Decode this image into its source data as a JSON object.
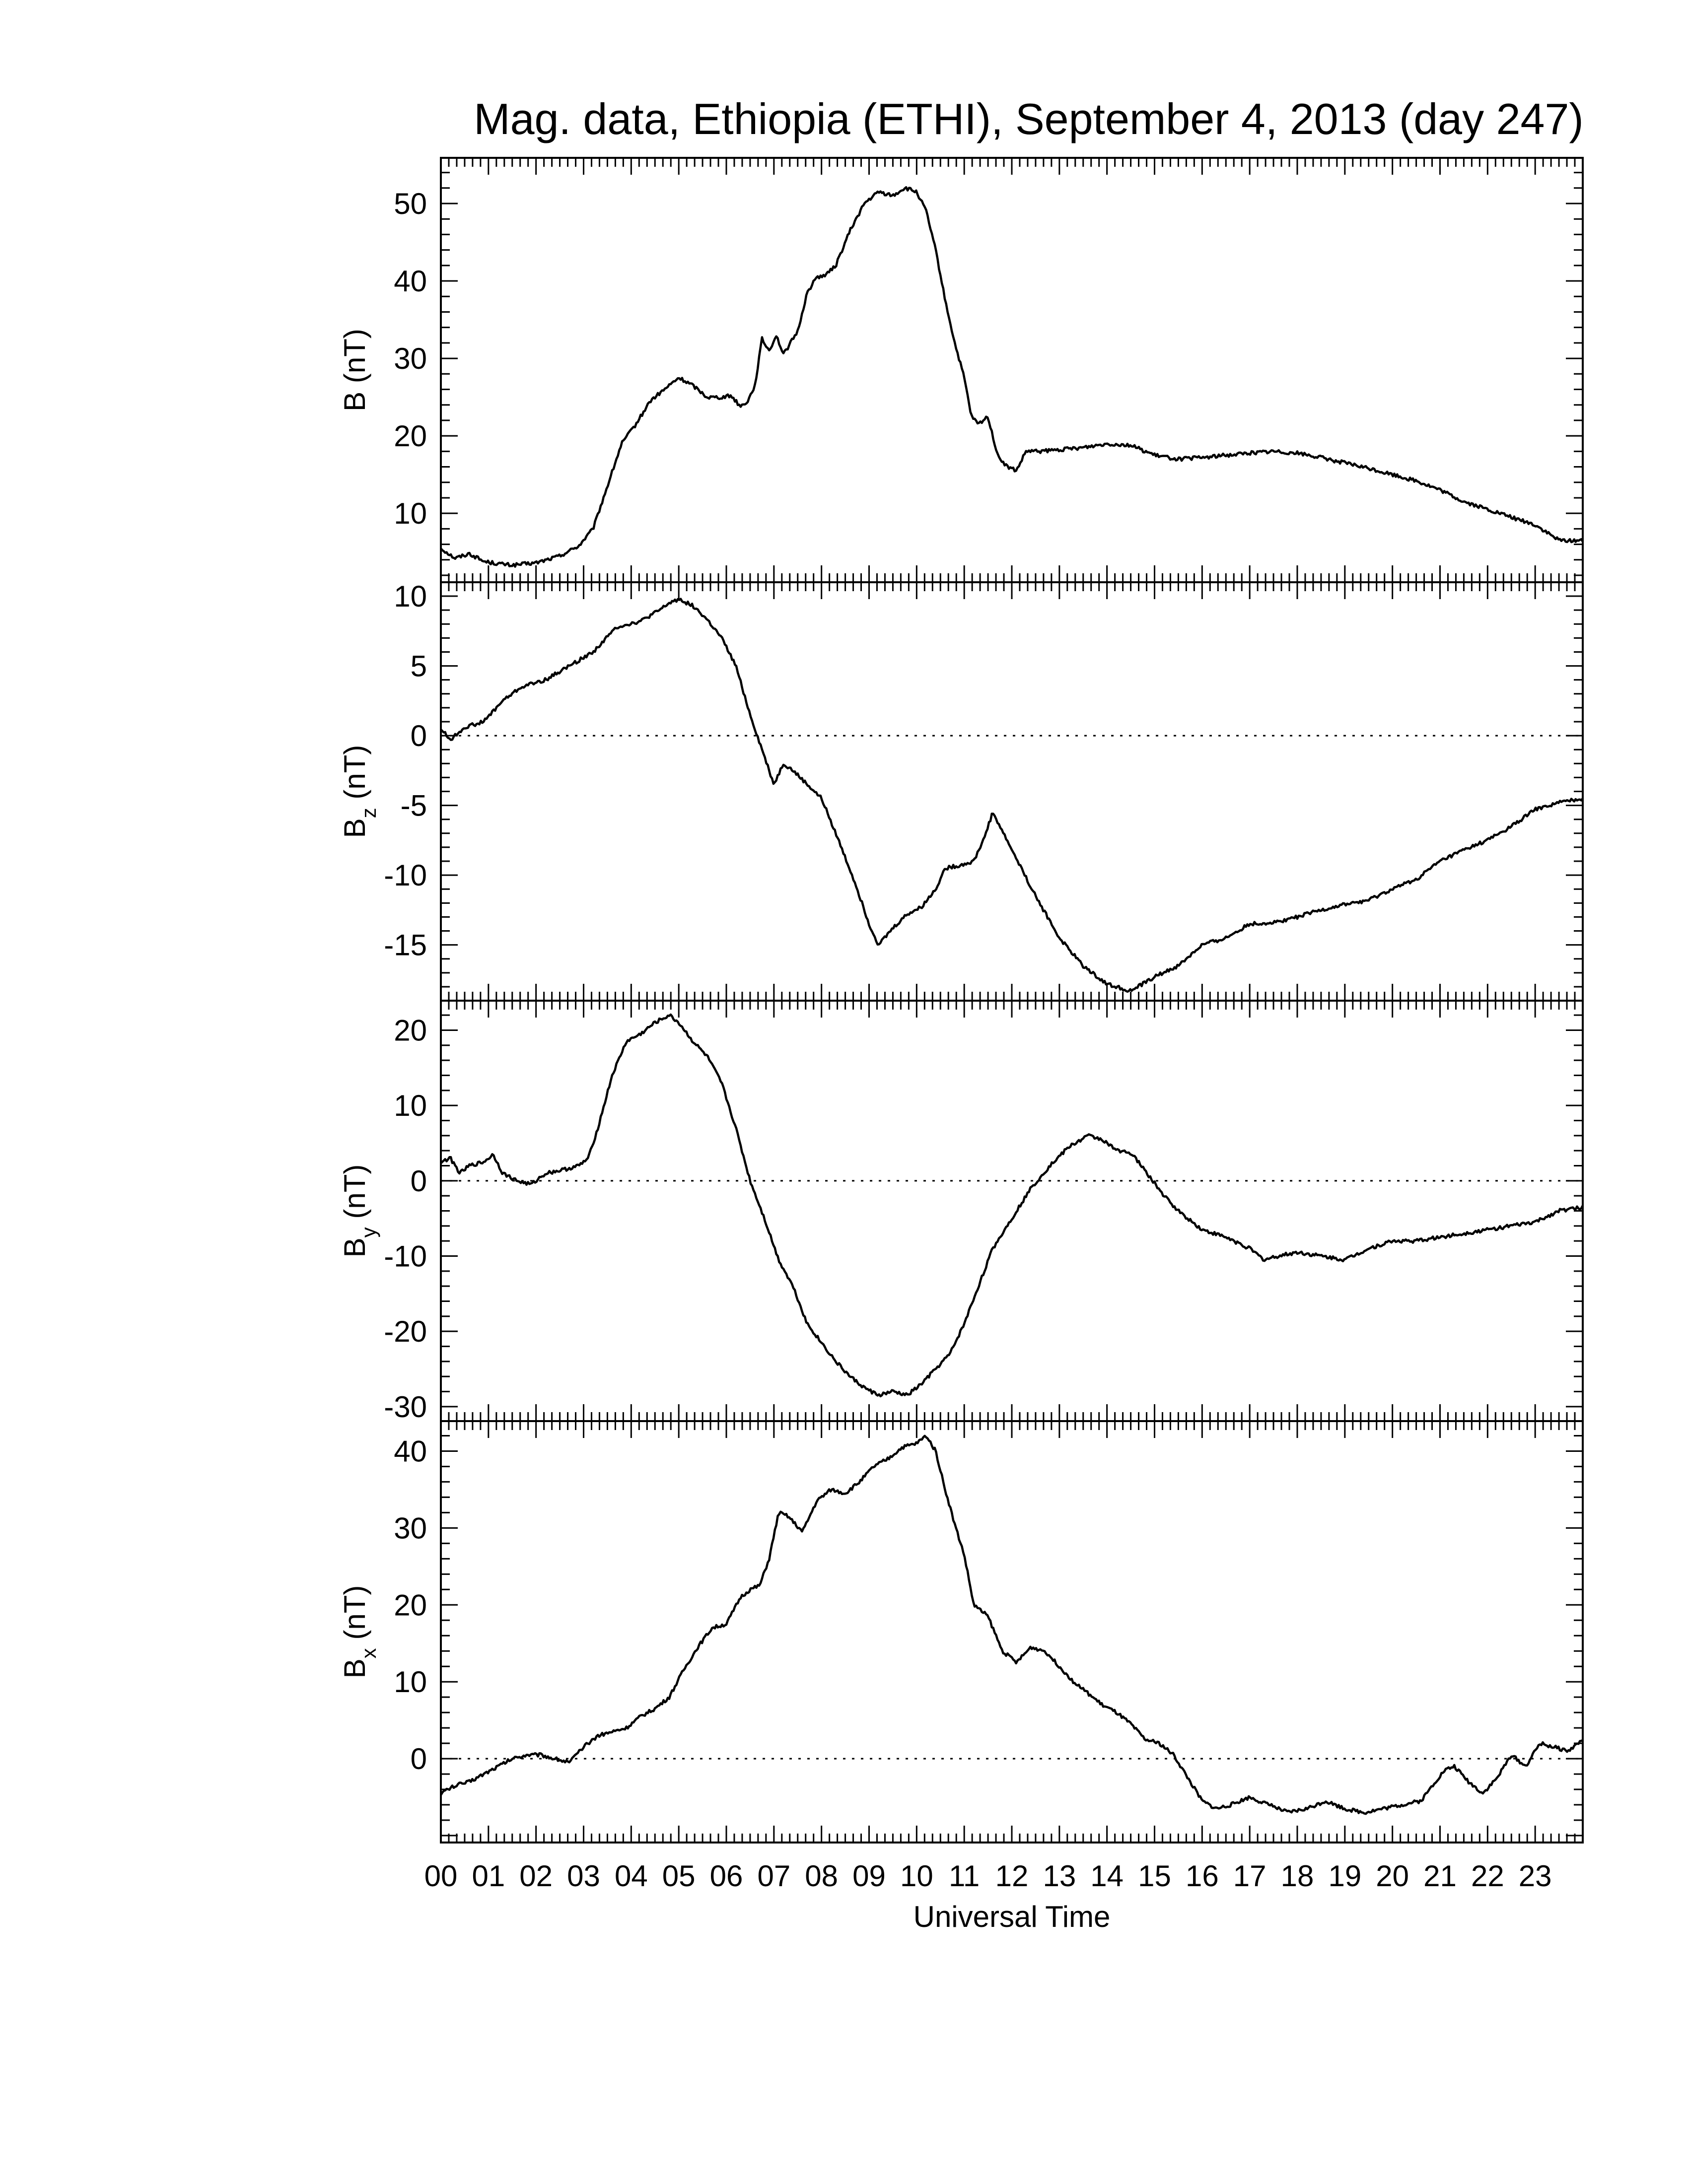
{
  "chart_data": {
    "title": "Mag. data, Ethiopia (ETHI), September 4, 2013 (day 247)",
    "x_axis": {
      "label": "Universal Time",
      "range_hours": [
        0,
        24
      ],
      "tick_labels": [
        "00",
        "01",
        "02",
        "03",
        "04",
        "05",
        "06",
        "07",
        "08",
        "09",
        "10",
        "11",
        "12",
        "13",
        "14",
        "15",
        "16",
        "17",
        "18",
        "19",
        "20",
        "21",
        "22",
        "23"
      ],
      "minor_ticks_per_hour": 6
    },
    "panels": [
      {
        "type": "line",
        "ylabel_main": "B",
        "ylabel_sub": "",
        "ylabel_unit": "(nT)",
        "ylim": [
          2,
          55
        ],
        "y_ticks": [
          10,
          20,
          30,
          40,
          50
        ],
        "zero_line": false,
        "series": [
          {
            "x": [
              0,
              0.3,
              0.6,
              0.9,
              1.2,
              1.5,
              2,
              2.5,
              2.9,
              3.2,
              3.5,
              3.8,
              4.1,
              4.4,
              4.7,
              5.0,
              5.3,
              5.6,
              5.9,
              6.1,
              6.3,
              6.45,
              6.6,
              6.75,
              6.9,
              7.05,
              7.2,
              7.35,
              7.5,
              7.7,
              7.9,
              8.1,
              8.3,
              8.6,
              8.9,
              9.2,
              9.5,
              9.75,
              10.0,
              10.2,
              10.4,
              10.6,
              10.8,
              11.0,
              11.15,
              11.3,
              11.5,
              11.7,
              11.9,
              12.1,
              12.3,
              12.6,
              13.0,
              13.5,
              14.0,
              14.5,
              15.0,
              15.5,
              16.0,
              16.5,
              17.0,
              17.5,
              18.0,
              18.5,
              19.0,
              19.5,
              20.0,
              20.5,
              21.0,
              21.5,
              22.0,
              22.5,
              23.0,
              23.5,
              24.0
            ],
            "y": [
              5.5,
              4.2,
              4.8,
              3.8,
              3.5,
              3.3,
              3.6,
              4.5,
              5.8,
              8.0,
              13.5,
              19.0,
              21.5,
              24.5,
              26.0,
              27.5,
              26.5,
              25.0,
              25.0,
              25.2,
              23.8,
              24.5,
              26.5,
              32.5,
              31.0,
              33.0,
              30.5,
              32.0,
              33.5,
              38.5,
              40.5,
              40.8,
              42.0,
              46.5,
              50.0,
              51.5,
              51.0,
              52.0,
              51.5,
              49.0,
              44.0,
              37.5,
              32.0,
              27.5,
              22.5,
              21.5,
              22.5,
              17.5,
              16.0,
              15.5,
              18.0,
              18.0,
              18.2,
              18.5,
              19.0,
              18.8,
              17.5,
              17.0,
              17.2,
              17.5,
              17.8,
              18.0,
              17.8,
              17.2,
              16.5,
              15.8,
              15.0,
              14.2,
              13.0,
              11.5,
              10.5,
              9.5,
              8.5,
              6.5,
              6.5
            ]
          }
        ]
      },
      {
        "type": "line",
        "ylabel_main": "B",
        "ylabel_sub": "z",
        "ylabel_unit": "(nT)",
        "ylim": [
          -18.5,
          10.5
        ],
        "y_ticks": [
          10,
          5,
          0,
          -5,
          -10,
          -15
        ],
        "zero_line": true,
        "series": [
          {
            "x": [
              0,
              0.2,
              0.5,
              0.9,
              1.3,
              1.7,
              2.2,
              2.7,
              3.2,
              3.7,
              4.2,
              4.6,
              4.8,
              5.0,
              5.3,
              5.6,
              5.9,
              6.2,
              6.5,
              6.8,
              7.0,
              7.2,
              7.4,
              7.7,
              8.0,
              8.3,
              8.7,
              9.0,
              9.2,
              9.5,
              9.8,
              10.1,
              10.4,
              10.6,
              10.9,
              11.2,
              11.4,
              11.6,
              11.9,
              12.2,
              12.5,
              13.0,
              13.5,
              14.0,
              14.5,
              15.0,
              15.5,
              16.0,
              16.5,
              17.0,
              17.5,
              18.0,
              18.5,
              19.0,
              19.5,
              20.0,
              20.5,
              21.0,
              21.5,
              22.0,
              22.5,
              23.0,
              23.5,
              24.0
            ],
            "y": [
              0.5,
              -0.3,
              0.6,
              1.0,
              2.5,
              3.5,
              4.0,
              5.0,
              6.0,
              7.8,
              8.2,
              9.0,
              9.5,
              9.8,
              9.3,
              8.3,
              7.0,
              5.0,
              1.5,
              -1.5,
              -3.5,
              -2.0,
              -2.5,
              -3.5,
              -4.5,
              -7.0,
              -10.5,
              -13.5,
              -15.0,
              -13.8,
              -12.8,
              -12.3,
              -11.0,
              -9.5,
              -9.3,
              -9.0,
              -7.5,
              -5.5,
              -7.5,
              -9.5,
              -11.5,
              -14.5,
              -16.5,
              -17.8,
              -18.3,
              -17.3,
              -16.5,
              -15.0,
              -14.5,
              -13.5,
              -13.4,
              -13.0,
              -12.5,
              -12.1,
              -11.8,
              -11.0,
              -10.3,
              -9.0,
              -8.2,
              -7.5,
              -6.5,
              -5.3,
              -4.8,
              -4.5
            ]
          }
        ]
      },
      {
        "type": "line",
        "ylabel_main": "B",
        "ylabel_sub": "y",
        "ylabel_unit": "(nT)",
        "ylim": [
          -31,
          23
        ],
        "y_ticks": [
          20,
          10,
          0,
          -10,
          -20,
          -30
        ],
        "zero_line": true,
        "series": [
          {
            "x": [
              0,
              0.2,
              0.4,
              0.6,
              0.9,
              1.1,
              1.3,
              1.6,
              1.9,
              2.2,
              2.6,
              2.9,
              3.1,
              3.3,
              3.6,
              3.9,
              4.2,
              4.5,
              4.8,
              5.0,
              5.3,
              5.6,
              5.9,
              6.2,
              6.5,
              6.8,
              7.1,
              7.4,
              7.7,
              8.0,
              8.3,
              8.6,
              8.9,
              9.2,
              9.5,
              9.8,
              10.1,
              10.4,
              10.7,
              11.0,
              11.3,
              11.6,
              12.0,
              12.4,
              12.8,
              13.2,
              13.6,
              13.9,
              14.2,
              14.4,
              14.6,
              14.9,
              15.2,
              15.5,
              16.0,
              16.5,
              17.0,
              17.3,
              17.6,
              18.0,
              18.5,
              19.0,
              19.5,
              20.0,
              20.5,
              21.0,
              21.5,
              22.0,
              22.5,
              23.0,
              23.5,
              24.0
            ],
            "y": [
              2.5,
              3.0,
              1.0,
              2.0,
              2.5,
              3.5,
              1.0,
              0.0,
              -0.5,
              1.0,
              1.5,
              2.0,
              3.0,
              7.0,
              14.0,
              18.5,
              19.5,
              21.0,
              22.0,
              21.0,
              18.5,
              16.5,
              13.0,
              7.0,
              0.0,
              -5.0,
              -10.5,
              -14.0,
              -19.0,
              -21.5,
              -24.0,
              -26.0,
              -27.5,
              -28.5,
              -28.0,
              -28.5,
              -27.0,
              -25.0,
              -23.0,
              -19.0,
              -14.0,
              -9.0,
              -5.0,
              -1.0,
              2.0,
              4.5,
              6.0,
              5.5,
              4.0,
              4.0,
              3.0,
              0.5,
              -2.0,
              -4.0,
              -6.5,
              -7.5,
              -9.0,
              -10.5,
              -10.0,
              -9.5,
              -10.0,
              -10.5,
              -9.0,
              -8.0,
              -8.0,
              -7.5,
              -7.0,
              -6.5,
              -6.0,
              -5.5,
              -4.0,
              -3.5
            ]
          }
        ]
      },
      {
        "type": "line",
        "ylabel_main": "B",
        "ylabel_sub": "x",
        "ylabel_unit": "(nT)",
        "ylim": [
          -10,
          43
        ],
        "y_ticks": [
          40,
          30,
          20,
          10,
          0
        ],
        "zero_line": true,
        "series": [
          {
            "x": [
              0,
              0.3,
              0.6,
              0.9,
              1.2,
              1.5,
              1.8,
              2.1,
              2.4,
              2.7,
              3.0,
              3.3,
              3.6,
              3.9,
              4.2,
              4.5,
              4.8,
              5.1,
              5.4,
              5.7,
              6.0,
              6.3,
              6.5,
              6.7,
              6.9,
              7.1,
              7.3,
              7.6,
              7.9,
              8.2,
              8.5,
              8.8,
              9.1,
              9.4,
              9.7,
              10.0,
              10.2,
              10.4,
              10.6,
              10.8,
              11.0,
              11.2,
              11.5,
              11.8,
              12.1,
              12.4,
              12.7,
              13.0,
              13.3,
              13.6,
              13.9,
              14.2,
              14.5,
              14.8,
              15.1,
              15.4,
              15.7,
              16.0,
              16.3,
              16.6,
              17.0,
              17.4,
              17.8,
              18.2,
              18.6,
              19.0,
              19.4,
              19.8,
              20.2,
              20.6,
              20.9,
              21.1,
              21.3,
              21.6,
              21.9,
              22.2,
              22.5,
              22.8,
              23.1,
              23.4,
              23.7,
              24.0
            ],
            "y": [
              -4.5,
              -3.5,
              -3.0,
              -2.0,
              -1.0,
              0.0,
              0.5,
              0.5,
              0.0,
              -0.5,
              1.5,
              3.0,
              3.5,
              4.0,
              5.5,
              6.5,
              8.0,
              11.5,
              14.5,
              17.0,
              17.5,
              21.0,
              22.0,
              22.5,
              26.0,
              32.0,
              31.5,
              29.5,
              33.5,
              35.0,
              34.5,
              36.0,
              38.0,
              39.0,
              40.5,
              41.0,
              42.0,
              40.0,
              35.0,
              30.5,
              26.5,
              20.0,
              18.5,
              14.0,
              12.5,
              14.5,
              14.0,
              12.0,
              10.0,
              8.5,
              7.0,
              6.0,
              4.5,
              2.5,
              2.0,
              0.5,
              -2.5,
              -5.5,
              -6.5,
              -6.0,
              -5.0,
              -6.0,
              -7.0,
              -6.5,
              -5.5,
              -6.5,
              -7.0,
              -6.5,
              -6.0,
              -5.5,
              -3.0,
              -1.5,
              -1.0,
              -3.0,
              -4.5,
              -2.5,
              0.5,
              -1.0,
              2.0,
              1.5,
              1.0,
              2.5
            ]
          }
        ]
      }
    ]
  }
}
